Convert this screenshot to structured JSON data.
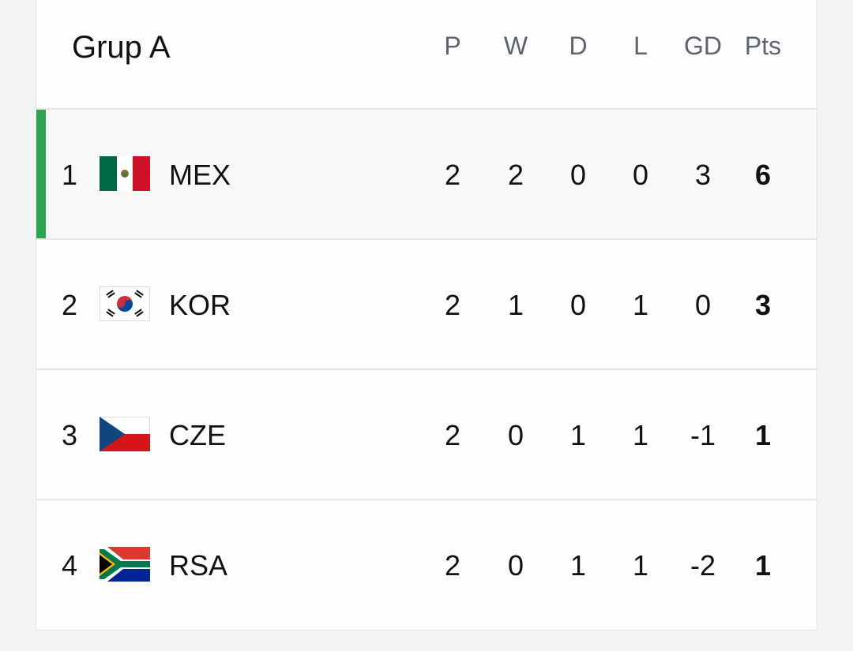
{
  "header": {
    "title": "Grup A"
  },
  "table": {
    "columns": [
      "P",
      "W",
      "D",
      "L",
      "GD",
      "Pts"
    ],
    "rows": [
      [
        1,
        "MEX",
        2,
        2,
        0,
        0,
        3,
        6
      ],
      [
        2,
        "KOR",
        2,
        1,
        0,
        1,
        0,
        3
      ],
      [
        3,
        "CZE",
        2,
        0,
        1,
        1,
        -1,
        1
      ],
      [
        4,
        "RSA",
        2,
        0,
        1,
        1,
        -2,
        1
      ]
    ]
  }
}
